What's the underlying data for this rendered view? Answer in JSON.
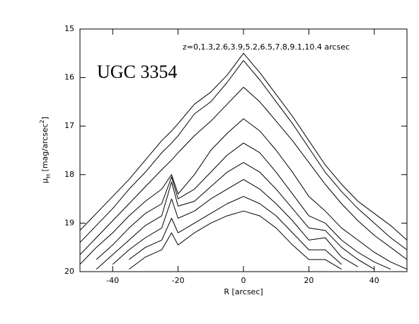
{
  "chart_data": {
    "type": "line",
    "annotations": [
      "UGC 3354",
      "z=0,1.3,2.6,3.9,5.2,6.5,7.8,9.1,10.4  arcsec"
    ],
    "xlabel": "R [arcsec]",
    "ylabel": {
      "symbol": "μ",
      "subscript": "H",
      "text": " [mag/arcsec",
      "superscript": "2",
      "close": "]"
    },
    "xlim": [
      -50,
      50
    ],
    "xticks": [
      -40,
      -20,
      0,
      20,
      40
    ],
    "ylim": [
      20,
      15
    ],
    "yticks": [
      15,
      16,
      17,
      18,
      19,
      20
    ],
    "x": [
      -50,
      -45,
      -40,
      -35,
      -30,
      -25,
      -22,
      -20,
      -15,
      -10,
      -5,
      0,
      5,
      10,
      15,
      20,
      25,
      30,
      35,
      40,
      45,
      50
    ],
    "series": [
      {
        "color": "#000000",
        "values": [
          19.15,
          18.8,
          18.45,
          18.1,
          17.7,
          17.3,
          17.1,
          16.95,
          16.55,
          16.3,
          15.95,
          15.5,
          15.9,
          16.35,
          16.8,
          17.3,
          17.8,
          18.2,
          18.55,
          18.8,
          19.05,
          19.35
        ]
      },
      {
        "color": "#000000",
        "values": [
          19.4,
          19.05,
          18.7,
          18.3,
          17.95,
          17.55,
          17.35,
          17.2,
          16.75,
          16.5,
          16.1,
          15.65,
          16.05,
          16.5,
          16.95,
          17.45,
          17.95,
          18.35,
          18.7,
          19.0,
          19.3,
          19.55
        ]
      },
      {
        "color": "#000000",
        "values": [
          19.65,
          19.3,
          18.95,
          18.6,
          18.25,
          17.9,
          17.7,
          17.55,
          17.2,
          16.9,
          16.55,
          16.2,
          16.5,
          16.9,
          17.3,
          17.75,
          18.2,
          18.6,
          18.95,
          19.25,
          19.5,
          19.75
        ]
      },
      {
        "color": "#000000",
        "values": [
          19.85,
          19.5,
          19.2,
          18.85,
          18.55,
          18.3,
          18.0,
          18.4,
          18.0,
          17.5,
          17.15,
          16.85,
          17.1,
          17.5,
          17.95,
          18.45,
          18.75,
          19.1,
          19.35,
          19.6,
          19.8,
          19.95
        ]
      },
      {
        "color": "#000000",
        "values": [
          null,
          19.75,
          19.45,
          19.1,
          18.8,
          18.6,
          18.05,
          18.5,
          18.3,
          17.95,
          17.6,
          17.35,
          17.55,
          17.95,
          18.4,
          18.85,
          19.0,
          19.35,
          19.6,
          19.8,
          19.95,
          null
        ]
      },
      {
        "color": "#000000",
        "values": [
          null,
          19.95,
          19.65,
          19.35,
          19.05,
          18.85,
          18.15,
          18.65,
          18.55,
          18.25,
          17.95,
          17.75,
          17.95,
          18.3,
          18.7,
          19.1,
          19.15,
          19.5,
          19.75,
          19.95,
          null,
          null
        ]
      },
      {
        "color": "#000000",
        "values": [
          null,
          null,
          19.85,
          19.55,
          19.3,
          19.1,
          18.5,
          18.9,
          18.75,
          18.5,
          18.3,
          18.1,
          18.3,
          18.6,
          18.95,
          19.35,
          19.3,
          19.7,
          19.9,
          null,
          null,
          null
        ]
      },
      {
        "color": "#000000",
        "values": [
          null,
          null,
          null,
          19.75,
          19.5,
          19.35,
          18.9,
          19.2,
          19.0,
          18.8,
          18.6,
          18.45,
          18.6,
          18.85,
          19.2,
          19.55,
          19.55,
          19.85,
          null,
          null,
          null,
          null
        ]
      },
      {
        "color": "#000000",
        "values": [
          null,
          null,
          null,
          19.95,
          19.7,
          19.55,
          19.2,
          19.45,
          19.2,
          19.0,
          18.85,
          18.75,
          18.85,
          19.1,
          19.45,
          19.75,
          19.75,
          19.95,
          null,
          null,
          null,
          null
        ]
      }
    ]
  }
}
